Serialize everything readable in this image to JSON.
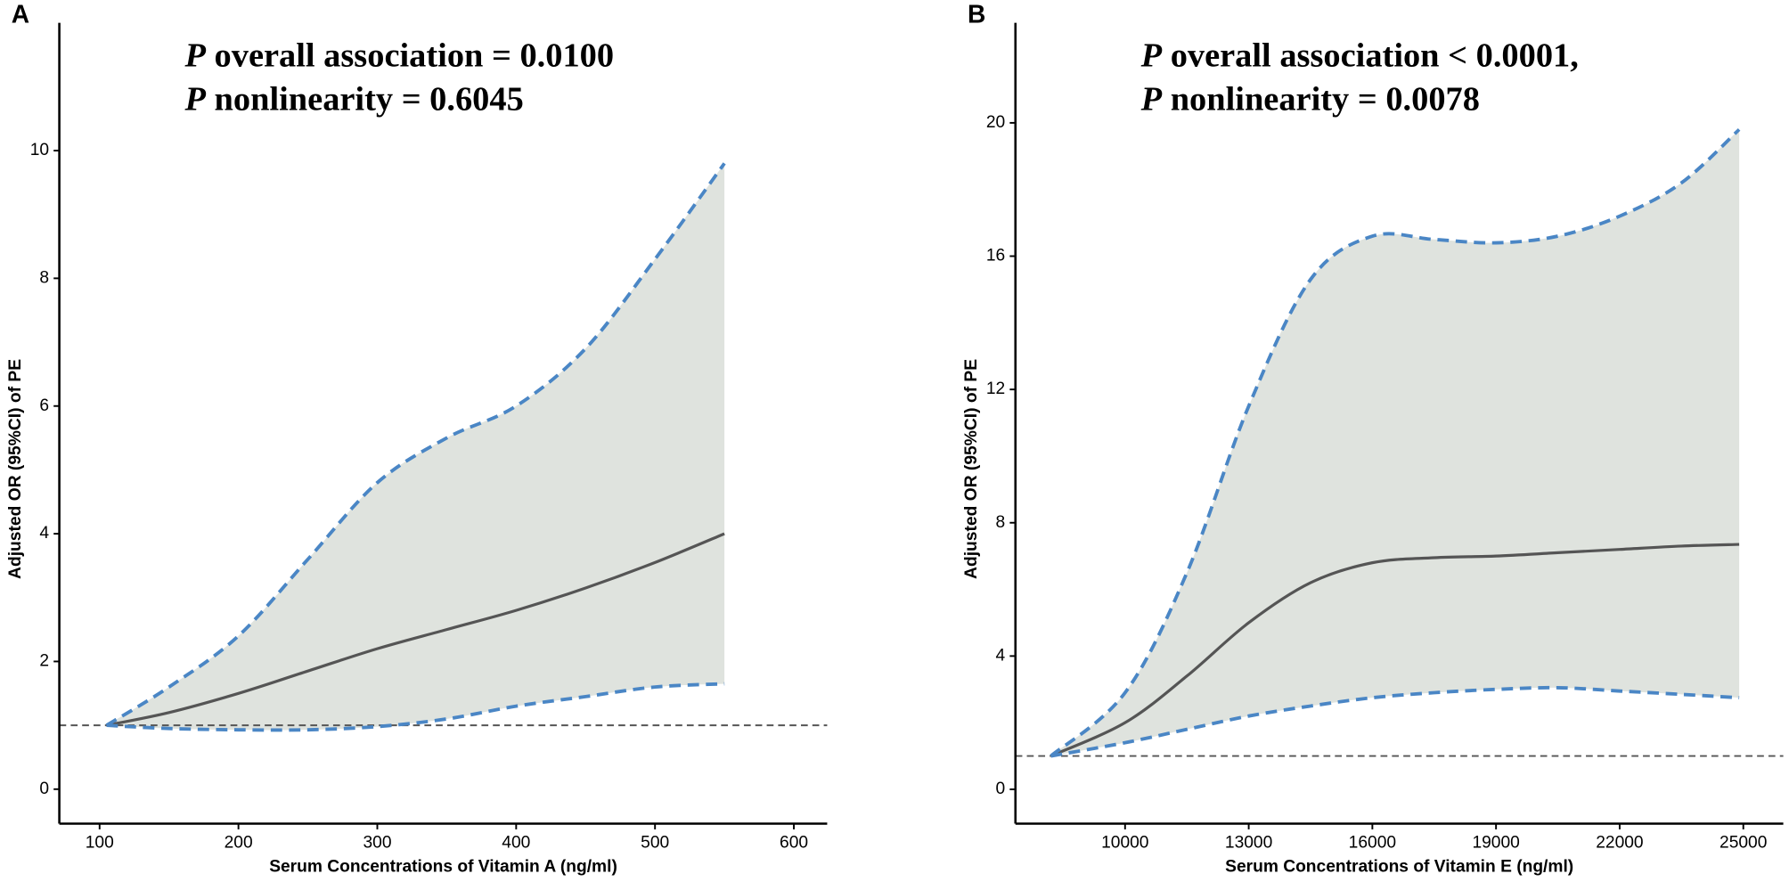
{
  "chart_data": [
    {
      "type": "line",
      "panel_label": "A",
      "title": [
        {
          "p": "P",
          "text": "overall association = 0.0100"
        },
        {
          "p": "P",
          "text": "nonlinearity = 0.6045"
        }
      ],
      "x_label": "Serum Concentrations of Vitamin A (ng/ml)",
      "y_label": "Adjusted OR (95%CI) of PE",
      "x": [
        105,
        150,
        200,
        250,
        300,
        350,
        400,
        450,
        500,
        550
      ],
      "series": [
        {
          "color": "#555555",
          "dashed": false,
          "values": [
            1.0,
            1.2,
            1.5,
            1.85,
            2.2,
            2.5,
            2.8,
            3.15,
            3.55,
            4.0
          ]
        },
        {
          "color": "#4a86c5",
          "dashed": true,
          "values": [
            1.0,
            0.95,
            0.93,
            0.93,
            0.98,
            1.1,
            1.3,
            1.45,
            1.6,
            1.65
          ]
        },
        {
          "color": "#4a86c5",
          "dashed": true,
          "values": [
            1.0,
            1.6,
            2.4,
            3.6,
            4.8,
            5.5,
            6.0,
            6.9,
            8.3,
            9.8
          ]
        }
      ],
      "band_color": "#dfe3de",
      "reference_line": 1,
      "xlim": [
        71,
        624
      ],
      "ylim": [
        -0.54,
        12.0
      ],
      "xticks": [
        100,
        200,
        300,
        400,
        500,
        600
      ],
      "yticks": [
        0,
        2,
        4,
        6,
        8,
        10
      ]
    },
    {
      "type": "line",
      "panel_label": "B",
      "title": [
        {
          "p": "P",
          "text": "overall association < 0.0001,"
        },
        {
          "p": "P",
          "text": "nonlinearity = 0.0078"
        }
      ],
      "x_label": "Serum Concentrations of Vitamin E (ng/ml)",
      "y_label": "Adjusted OR (95%CI) of PE",
      "x": [
        8200,
        10000,
        11500,
        13000,
        14500,
        16000,
        17500,
        19000,
        20500,
        22000,
        23500,
        24900
      ],
      "series": [
        {
          "color": "#555555",
          "dashed": false,
          "values": [
            1.0,
            2.0,
            3.4,
            5.0,
            6.2,
            6.8,
            6.95,
            7.0,
            7.1,
            7.2,
            7.3,
            7.35
          ]
        },
        {
          "color": "#4a86c5",
          "dashed": true,
          "values": [
            1.0,
            1.4,
            1.8,
            2.2,
            2.5,
            2.75,
            2.9,
            3.0,
            3.05,
            2.95,
            2.85,
            2.75
          ]
        },
        {
          "color": "#4a86c5",
          "dashed": true,
          "values": [
            1.0,
            2.9,
            6.5,
            11.5,
            15.3,
            16.6,
            16.5,
            16.4,
            16.6,
            17.2,
            18.2,
            19.8
          ]
        }
      ],
      "band_color": "#dfe3de",
      "reference_line": 1,
      "xlim": [
        7340,
        25970
      ],
      "ylim": [
        -1.03,
        23.0
      ],
      "xticks": [
        10000,
        13000,
        16000,
        19000,
        22000,
        25000
      ],
      "yticks": [
        0,
        4,
        8,
        12,
        16,
        20
      ]
    }
  ]
}
